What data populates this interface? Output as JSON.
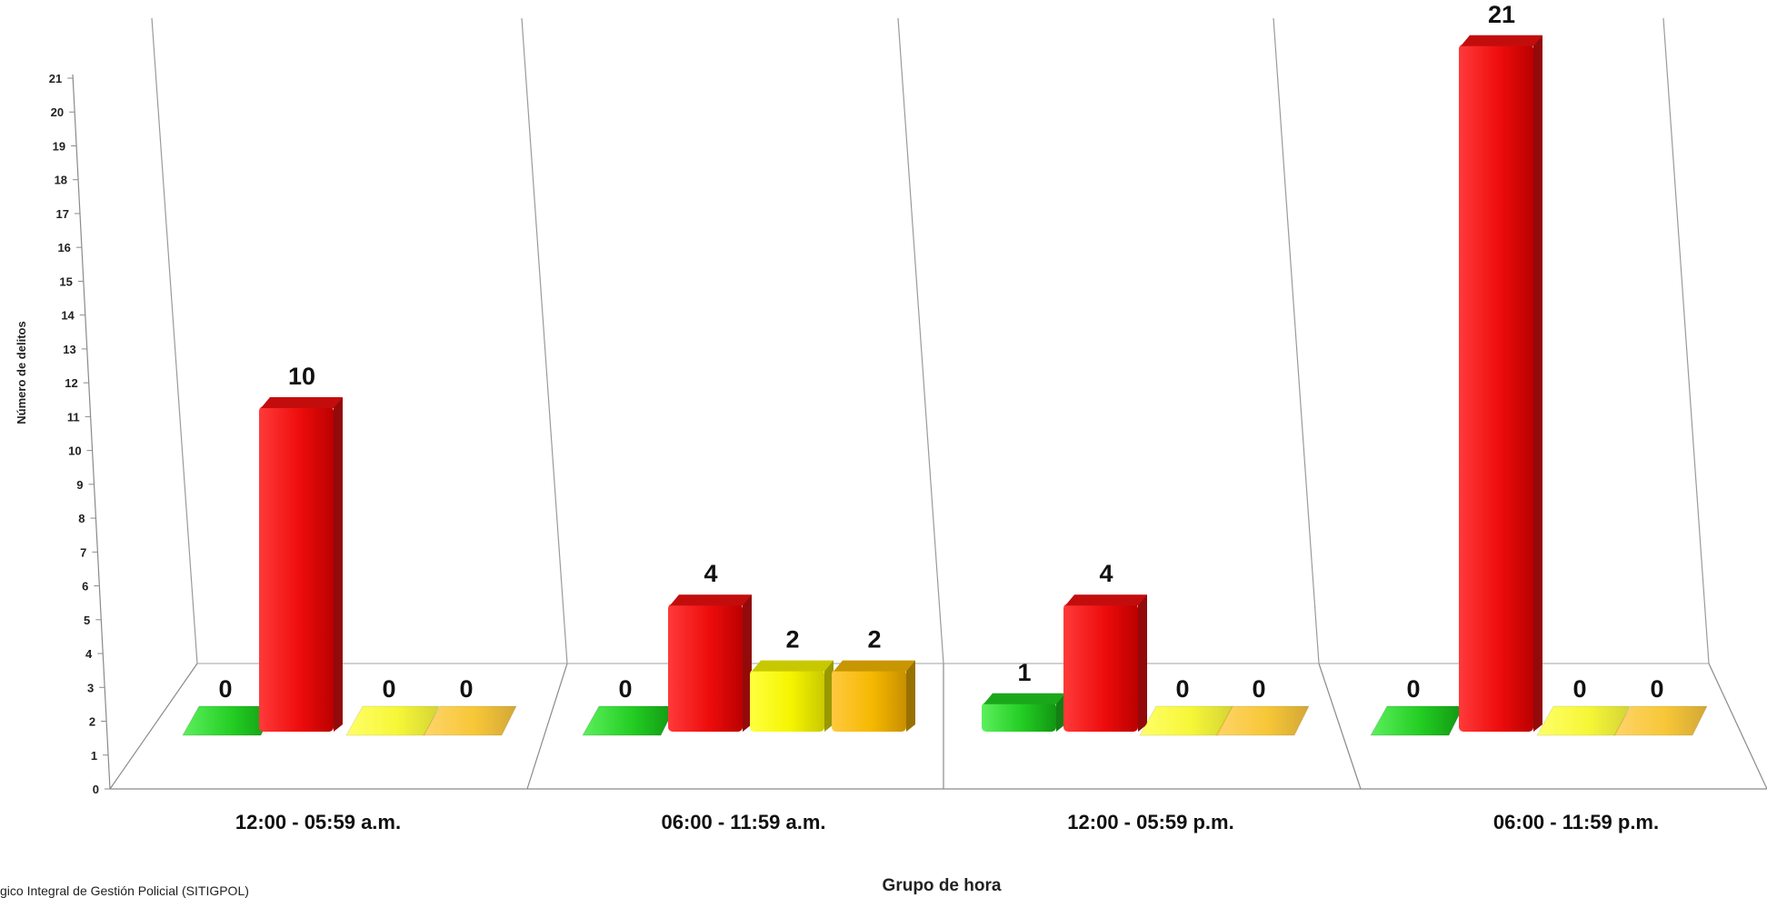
{
  "chart_data": {
    "type": "bar",
    "style": "3d-clustered-column",
    "title": "",
    "xlabel": "Grupo de hora",
    "ylabel": "Número de delitos",
    "ylim": [
      0,
      21
    ],
    "yticks": [
      "0",
      "1",
      "2",
      "3",
      "4",
      "5",
      "6",
      "7",
      "8",
      "9",
      "10",
      "11",
      "12",
      "13",
      "14",
      "15",
      "16",
      "17",
      "18",
      "19",
      "20",
      "21"
    ],
    "grid": false,
    "legend": "none",
    "categories": [
      "12:00 - 05:59 a.m.",
      "06:00 - 11:59 a.m.",
      "12:00 - 05:59 p.m.",
      "06:00 - 11:59 p.m."
    ],
    "series": [
      {
        "color": "#22cc22",
        "values": [
          0,
          0,
          1,
          0
        ]
      },
      {
        "color": "#ee1111",
        "values": [
          10,
          4,
          4,
          21
        ]
      },
      {
        "color": "#f5f500",
        "values": [
          0,
          2,
          0,
          0
        ]
      },
      {
        "color": "#f5b800",
        "values": [
          0,
          2,
          0,
          0
        ]
      }
    ],
    "data_labels": [
      [
        "0",
        "10",
        "0",
        "0"
      ],
      [
        "0",
        "4",
        "2",
        "2"
      ],
      [
        "1",
        "4",
        "0",
        "0"
      ],
      [
        "0",
        "21",
        "0",
        "0"
      ]
    ]
  },
  "source_text": "gico Integral de Gestión Policial (SITIGPOL)"
}
